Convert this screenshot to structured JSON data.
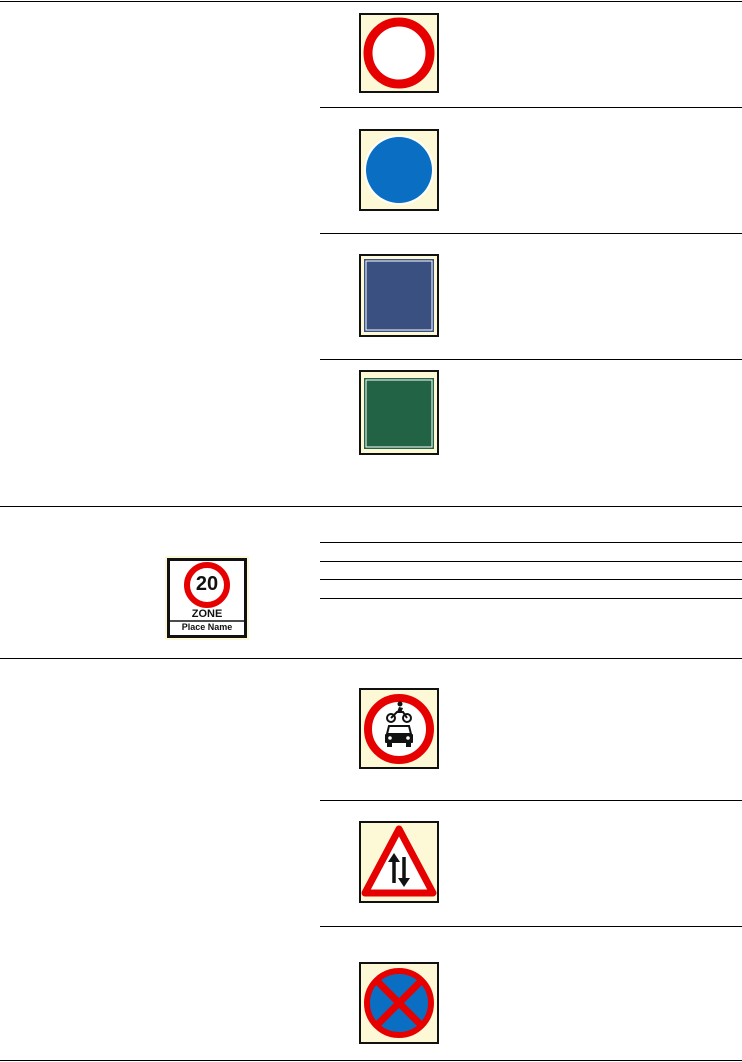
{
  "sections": [
    {
      "name": "sign-types",
      "signs": [
        {
          "name": "red-ring-prohibition-sign",
          "icon": "red-ring",
          "color": "#e60000"
        },
        {
          "name": "blue-circle-mandatory-sign",
          "icon": "blue-circle",
          "color": "#0a6fc2"
        },
        {
          "name": "blue-rectangle-direction-sign",
          "icon": "blue-rectangle",
          "color": "#3a5080"
        },
        {
          "name": "green-rectangle-primary-route-sign",
          "icon": "green-rectangle",
          "color": "#236345"
        }
      ]
    },
    {
      "name": "zone-sign-section",
      "zone_sign": {
        "speed": "20",
        "zone_label": "ZONE",
        "place_name": "Place Name",
        "ring_color": "#e60000"
      }
    },
    {
      "name": "regulatory-signs",
      "signs": [
        {
          "name": "no-motor-vehicles-sign",
          "icon": "motorcycle-car-prohibited",
          "color": "#e60000"
        },
        {
          "name": "two-way-traffic-warning-sign",
          "icon": "two-way-traffic-triangle",
          "color": "#e60000"
        },
        {
          "name": "no-stopping-clearway-sign",
          "icon": "blue-red-cross",
          "color": "#0a6fc2"
        }
      ]
    }
  ]
}
